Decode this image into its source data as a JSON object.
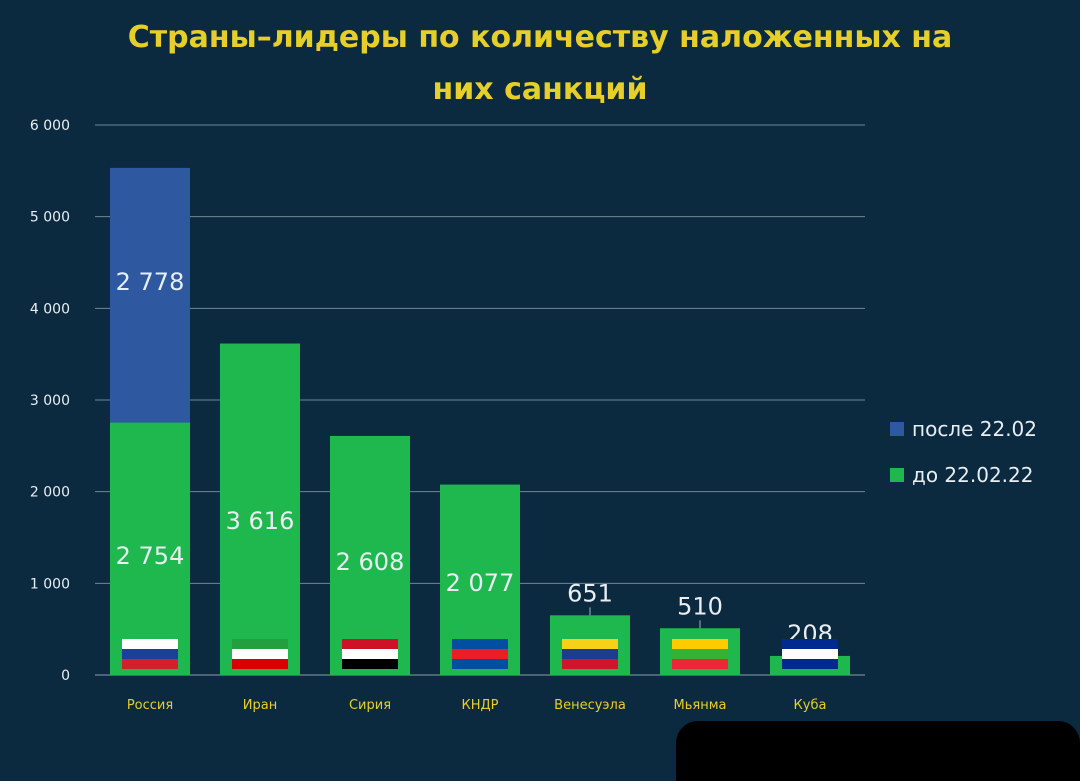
{
  "chart_data": {
    "type": "bar",
    "stacked": true,
    "title": "Страны–лидеры по количеству наложенных на них санкций",
    "categories": [
      "Россия",
      "Иран",
      "Сирия",
      "КНДР",
      "Венесуэла",
      "Мьянма",
      "Куба"
    ],
    "series": [
      {
        "name": "до 22.02.22",
        "color": "#1fb84f",
        "values": [
          2754,
          3616,
          2608,
          2077,
          651,
          510,
          208
        ]
      },
      {
        "name": "после 22.02",
        "color": "#2e58a0",
        "values": [
          2778,
          0,
          0,
          0,
          0,
          0,
          0
        ]
      }
    ],
    "bar_labels": [
      {
        "category": "Россия",
        "series": "после 22.02",
        "text": "2 778"
      },
      {
        "category": "Россия",
        "series": "до 22.02.22",
        "text": "2 754"
      },
      {
        "category": "Иран",
        "series": "до 22.02.22",
        "text": "3 616"
      },
      {
        "category": "Сирия",
        "series": "до 22.02.22",
        "text": "2 608"
      },
      {
        "category": "КНДР",
        "series": "до 22.02.22",
        "text": "2 077"
      },
      {
        "category": "Венесуэла",
        "series": "до 22.02.22",
        "text": "651"
      },
      {
        "category": "Мьянма",
        "series": "до 22.02.22",
        "text": "510"
      },
      {
        "category": "Куба",
        "series": "до 22.02.22",
        "text": "208"
      }
    ],
    "yticks": [
      "0",
      "1 000",
      "2 000",
      "3 000",
      "4 000",
      "5 000",
      "6 000"
    ],
    "ylim": [
      0,
      6000
    ],
    "grid": true,
    "legend_position": "right"
  },
  "flags": [
    {
      "category": "Россия",
      "stripes": [
        "#ffffff",
        "#1c3f9a",
        "#d4202c"
      ]
    },
    {
      "category": "Иран",
      "stripes": [
        "#239f40",
        "#ffffff",
        "#da0000"
      ]
    },
    {
      "category": "Сирия",
      "stripes": [
        "#ce1126",
        "#ffffff",
        "#000000"
      ]
    },
    {
      "category": "КНДР",
      "stripes": [
        "#024fa2",
        "#ed1c27",
        "#024fa2"
      ]
    },
    {
      "category": "Венесуэла",
      "stripes": [
        "#f7d117",
        "#1a3d8f",
        "#cf142b"
      ]
    },
    {
      "category": "Мьянма",
      "stripes": [
        "#fecb00",
        "#34b233",
        "#ea2839"
      ]
    },
    {
      "category": "Куба",
      "stripes": [
        "#002a8f",
        "#ffffff",
        "#002a8f"
      ]
    }
  ]
}
